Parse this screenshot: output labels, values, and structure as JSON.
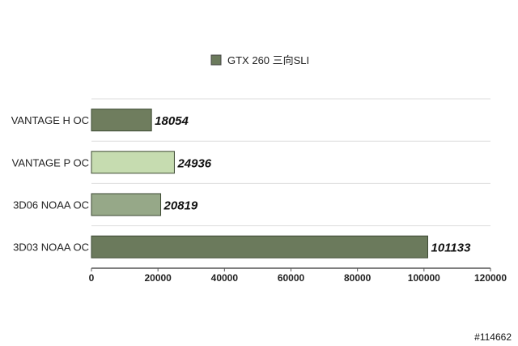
{
  "chart_data": {
    "type": "bar",
    "orientation": "horizontal",
    "categories": [
      "VANTAGE H OC",
      "VANTAGE P OC",
      "3D06 NOAA OC",
      "3D03 NOAA OC"
    ],
    "series": [
      {
        "name": "GTX 260 三向SLI",
        "values": [
          18054,
          24936,
          20819,
          101133
        ],
        "colors": [
          "#6f7d5e",
          "#c6dcb0",
          "#96a888",
          "#6b7a5c"
        ]
      }
    ],
    "xlim": [
      0,
      120000
    ],
    "xticks": [
      0,
      20000,
      40000,
      60000,
      80000,
      100000,
      120000
    ],
    "grid": true,
    "legend_position": "top-center",
    "legend_color": "#6b7a5c",
    "data_labels": [
      "18054",
      "24936",
      "20819",
      "101133"
    ]
  },
  "watermark": "#114662"
}
